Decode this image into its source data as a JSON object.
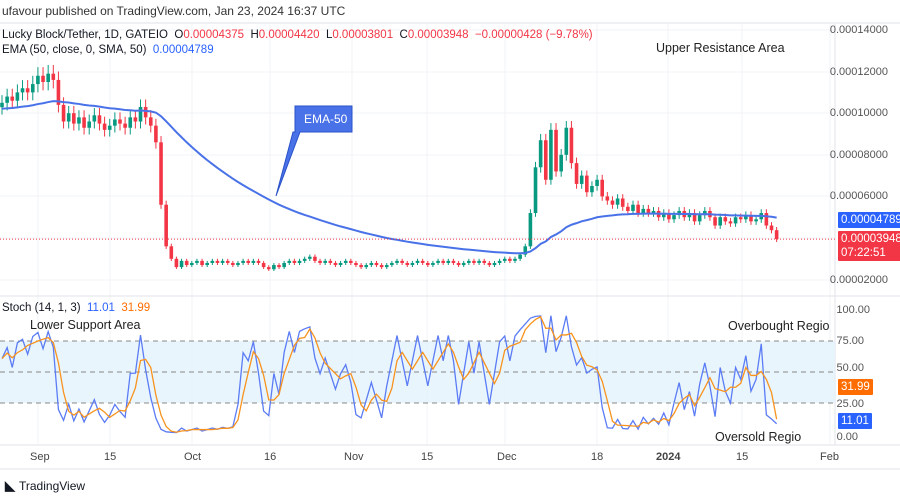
{
  "header": {
    "published": "ufavour published on TradingView.com, Jan 23, 2024 16:37 UTC"
  },
  "legend": {
    "symbol": "Lucky Block/Tether, 1D, GATEIO",
    "o_label": "O",
    "o": "0.00004375",
    "h_label": "H",
    "h": "0.00004420",
    "l_label": "L",
    "l": "0.00003801",
    "c_label": "C",
    "c": "0.00003948",
    "change": "−0.00000428 (−9.78%)",
    "ema_label": "EMA (50, close, 0, SMA, 50)",
    "ema_value": "0.00004789"
  },
  "stoch_legend": {
    "label": "Stoch (14, 1, 3)",
    "k": "11.01",
    "d": "31.99"
  },
  "annotations": {
    "upper": "Upper Resistance Area",
    "ema": "EMA-50",
    "lower": "Lower Support Area",
    "overbought": "Overbought Regio",
    "oversold": "Oversold Regio"
  },
  "price_axis": [
    "0.00014000",
    "0.00012000",
    "0.00010000",
    "0.00008000",
    "0.00006000",
    "0.00002000"
  ],
  "stoch_axis": [
    "100.00",
    "75.00",
    "50.00",
    "25.00",
    "0.00"
  ],
  "time_axis": [
    "Sep",
    "15",
    "Oct",
    "16",
    "Nov",
    "15",
    "Dec",
    "18",
    "2024",
    "15",
    "Feb"
  ],
  "tags": {
    "ema": "0.00004789",
    "price": "0.00003948",
    "countdown": "07:22:51",
    "stoch_d": "31.99",
    "stoch_k": "11.01"
  },
  "footer": {
    "brand": "TradingView"
  },
  "colors": {
    "up": "#089981",
    "down": "#f23645",
    "ema": "#4a72e8",
    "stoch_k": "#5b7cf5",
    "stoch_d": "#f7931e",
    "band": "#e3f2fd"
  },
  "chart_data": {
    "type": "candlestick",
    "first_date": "2023-08-25",
    "interval": "1D",
    "close": [
      0.000105,
      0.000108,
      0.000106,
      0.00011,
      0.000112,
      0.00011,
      0.000114,
      0.000118,
      0.000115,
      0.000119,
      0.000116,
      0.000104,
      9.6e-05,
      0.0001,
      9.5e-05,
      9.8e-05,
      9.3e-05,
      9.6e-05,
      9.9e-05,
      9.5e-05,
      9.2e-05,
      9.4e-05,
      9.7e-05,
      9.5e-05,
      9.3e-05,
      9.8e-05,
      9.6e-05,
      0.000103,
      9.8e-05,
      9.4e-05,
      8.6e-05,
      5.6e-05,
      3.6e-05,
      3e-05,
      2.6e-05,
      2.9e-05,
      2.7e-05,
      2.8e-05,
      2.9e-05,
      2.7e-05,
      2.8e-05,
      2.9e-05,
      2.8e-05,
      2.9e-05,
      2.8e-05,
      2.7e-05,
      2.8e-05,
      2.9e-05,
      2.8e-05,
      2.9e-05,
      2.8e-05,
      2.6e-05,
      2.5e-05,
      2.7e-05,
      2.6e-05,
      2.8e-05,
      2.9e-05,
      2.8e-05,
      2.9e-05,
      3e-05,
      3.1e-05,
      2.9e-05,
      2.8e-05,
      2.9e-05,
      2.8e-05,
      2.7e-05,
      2.8e-05,
      2.9e-05,
      2.8e-05,
      2.7e-05,
      2.6e-05,
      2.7e-05,
      2.8e-05,
      2.7e-05,
      2.6e-05,
      2.7e-05,
      2.8e-05,
      2.9e-05,
      2.8e-05,
      2.7e-05,
      2.8e-05,
      2.9e-05,
      2.8e-05,
      2.7e-05,
      2.8e-05,
      2.9e-05,
      2.8e-05,
      2.9e-05,
      2.8e-05,
      2.7e-05,
      2.8e-05,
      2.9e-05,
      2.8e-05,
      2.9e-05,
      2.8e-05,
      2.7e-05,
      2.8e-05,
      2.9e-05,
      3e-05,
      2.9e-05,
      3e-05,
      3.2e-05,
      3.6e-05,
      5.2e-05,
      7.4e-05,
      8.7e-05,
      6.8e-05,
      9.2e-05,
      7.2e-05,
      8e-05,
      9.3e-05,
      7.6e-05,
      6.6e-05,
      7e-05,
      6.2e-05,
      6.5e-05,
      6.8e-05,
      6e-05,
      5.8e-05,
      5.6e-05,
      5.9e-05,
      5.5e-05,
      5.3e-05,
      5.6e-05,
      5.2e-05,
      5.4e-05,
      5.2e-05,
      5.3e-05,
      5e-05,
      5.2e-05,
      4.9e-05,
      5.1e-05,
      5.3e-05,
      5e-05,
      5.2e-05,
      4.8e-05,
      5.1e-05,
      5.3e-05,
      5e-05,
      4.6e-05,
      5e-05,
      4.8e-05,
      4.7e-05,
      5e-05,
      4.9e-05,
      5.1e-05,
      4.8e-05,
      4.9e-05,
      5.2e-05,
      4.6e-05,
      4.375e-05,
      3.948e-05
    ],
    "ylim": [
      1e-05,
      0.000145
    ],
    "stoch_ylim": [
      0,
      100
    ],
    "stoch_levels": [
      75,
      50,
      25
    ]
  }
}
